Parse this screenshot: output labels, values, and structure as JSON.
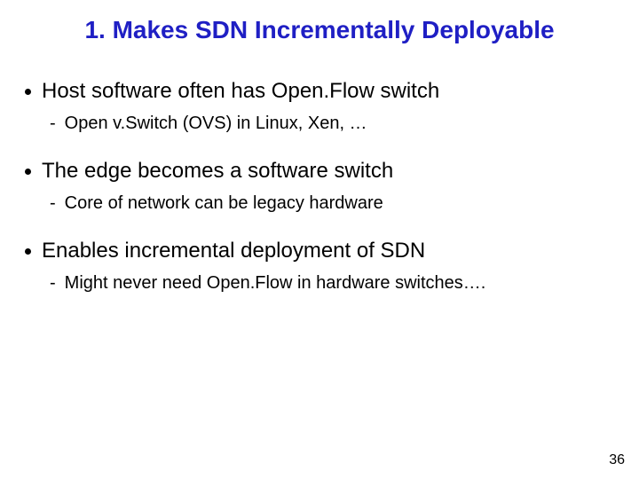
{
  "title": "1. Makes SDN Incrementally Deployable",
  "bullets": [
    {
      "text": "Host software often has Open.Flow switch",
      "sub": [
        {
          "text": "Open v.Switch (OVS) in Linux, Xen, …"
        }
      ]
    },
    {
      "text": "The edge becomes a software switch",
      "sub": [
        {
          "text": "Core of network can be legacy hardware"
        }
      ]
    },
    {
      "text": "Enables incremental deployment of SDN",
      "sub": [
        {
          "text": "Might never need Open.Flow in hardware switches…."
        }
      ]
    }
  ],
  "page_number": "36",
  "colors": {
    "title": "#1f1fc4",
    "text": "#000000",
    "background": "#ffffff"
  }
}
